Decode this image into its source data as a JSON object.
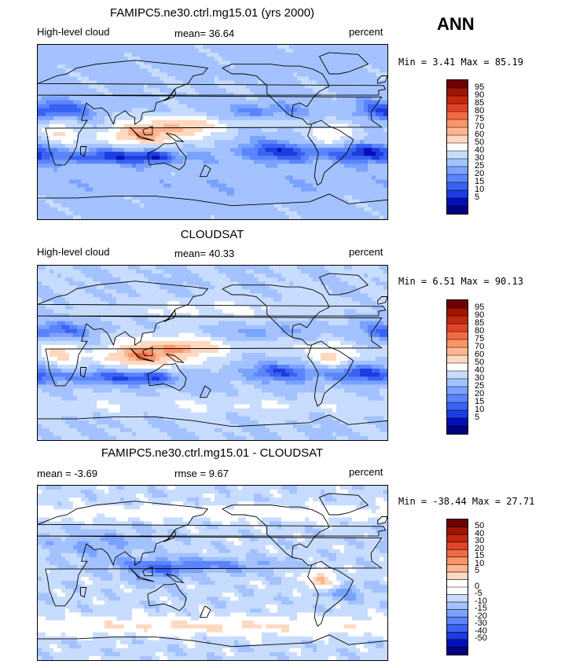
{
  "season": "ANN",
  "units_label": "percent",
  "colors": {
    "abs": [
      "#000080",
      "#0010b8",
      "#1c3ce0",
      "#3a62f2",
      "#5b84ff",
      "#7aa2ff",
      "#a3c2ff",
      "#c8dcff",
      "#ffffff",
      "#ffd8c0",
      "#ffb690",
      "#ff9468",
      "#f06a44",
      "#e04426",
      "#c22810",
      "#a01400",
      "#6e0000"
    ],
    "diff": [
      "#000080",
      "#0010b8",
      "#1c3ce0",
      "#3a62f2",
      "#5b84ff",
      "#7aa2ff",
      "#a3c2ff",
      "#c8dcff",
      "#ffffff",
      "#ffffff",
      "#ffd8c0",
      "#ffb690",
      "#ff9468",
      "#f06a44",
      "#e04426",
      "#c22810",
      "#a01400",
      "#6e0000"
    ]
  },
  "panels": [
    {
      "title": "FAMIPC5.ne30.ctrl.mg15.01 (yrs 2000)",
      "left_label": "High-level cloud",
      "mid_label": "mean=   36.64",
      "right_label": "percent",
      "minmax": "Min =    3.41  Max =   85.19",
      "colorbar_labels": [
        "95",
        "90",
        "85",
        "80",
        "75",
        "70",
        "60",
        "50",
        "40",
        "30",
        "25",
        "20",
        "15",
        "10",
        "5"
      ]
    },
    {
      "title": "CLOUDSAT",
      "left_label": "High-level cloud",
      "mid_label": "mean=   40.33",
      "right_label": "percent",
      "minmax": "Min =    6.51  Max =   90.13",
      "colorbar_labels": [
        "95",
        "90",
        "85",
        "80",
        "75",
        "70",
        "60",
        "50",
        "40",
        "30",
        "25",
        "20",
        "15",
        "10",
        "5"
      ]
    },
    {
      "title": "FAMIPC5.ne30.ctrl.mg15.01 - CLOUDSAT",
      "left_label": "mean =   -3.69",
      "mid_label": "rmse =    9.67",
      "right_label": "percent",
      "minmax": "Min = -38.44  Max =   27.71",
      "colorbar_labels": [
        "50",
        "40",
        "30",
        "20",
        "15",
        "10",
        "5",
        "0",
        "-5",
        "-10",
        "-15",
        "-20",
        "-30",
        "-40",
        "-50"
      ]
    }
  ],
  "chart_data": [
    {
      "type": "heatmap",
      "title": "FAMIPC5.ne30.ctrl.mg15.01 (yrs 2000)",
      "variable": "High-level cloud",
      "units": "percent",
      "mean": 36.64,
      "min": 3.41,
      "max": 85.19,
      "contour_levels": [
        5,
        10,
        15,
        20,
        25,
        30,
        40,
        50,
        60,
        70,
        75,
        80,
        85,
        90,
        95
      ]
    },
    {
      "type": "heatmap",
      "title": "CLOUDSAT",
      "variable": "High-level cloud",
      "units": "percent",
      "mean": 40.33,
      "min": 6.51,
      "max": 90.13,
      "contour_levels": [
        5,
        10,
        15,
        20,
        25,
        30,
        40,
        50,
        60,
        70,
        75,
        80,
        85,
        90,
        95
      ]
    },
    {
      "type": "heatmap",
      "title": "FAMIPC5.ne30.ctrl.mg15.01 - CLOUDSAT",
      "units": "percent",
      "mean": -3.69,
      "rmse": 9.67,
      "min": -38.44,
      "max": 27.71,
      "contour_levels": [
        -50,
        -40,
        -30,
        -20,
        -15,
        -10,
        -5,
        0,
        5,
        10,
        15,
        20,
        30,
        40,
        50
      ]
    }
  ]
}
